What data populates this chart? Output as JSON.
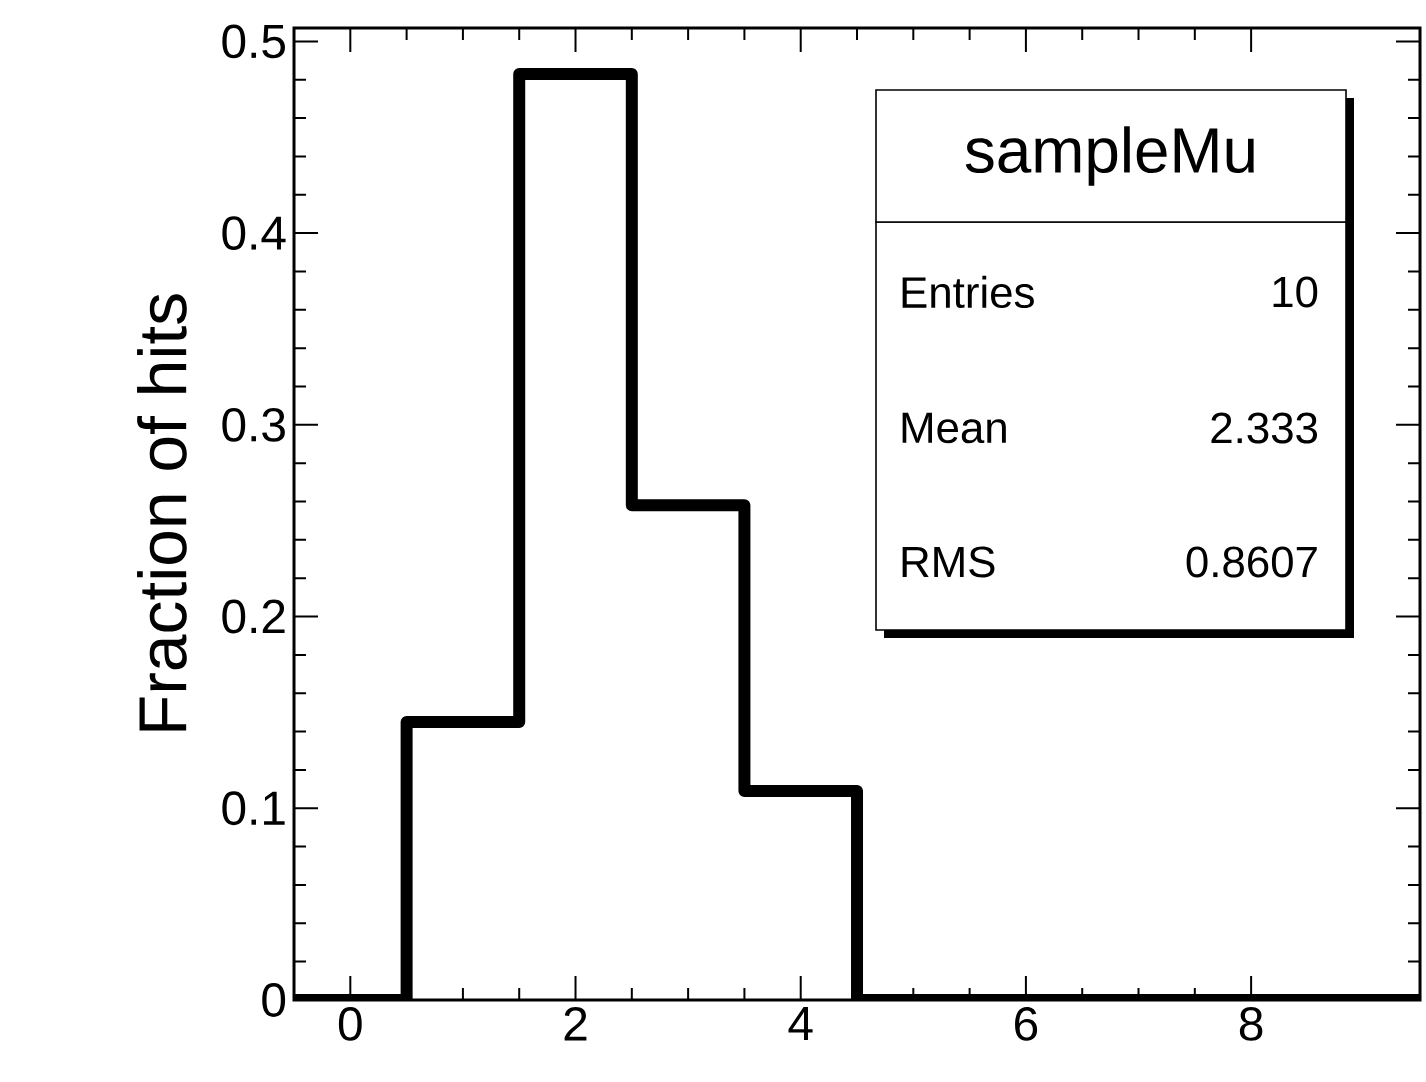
{
  "chart_data": {
    "type": "histogram",
    "ylabel": "Fraction of hits",
    "color": "#000000",
    "bins": [
      -0.5,
      0.5,
      1.5,
      2.5,
      3.5,
      4.5,
      5.5,
      6.5,
      7.5,
      8.5,
      9.5
    ],
    "values": [
      0,
      0.145,
      0.483,
      0.258,
      0.109,
      0,
      0,
      0,
      0,
      0
    ],
    "xlim": [
      -0.5,
      9.5
    ],
    "ylim": [
      0,
      0.507
    ],
    "xticks": [
      0,
      2,
      4,
      6,
      8
    ],
    "yticks": [
      0,
      0.1,
      0.2,
      0.3,
      0.4,
      0.5
    ],
    "annotations": [
      "sampleMu",
      "Entries",
      "10",
      "Mean",
      "2.333",
      "RMS",
      "0.8607"
    ]
  }
}
